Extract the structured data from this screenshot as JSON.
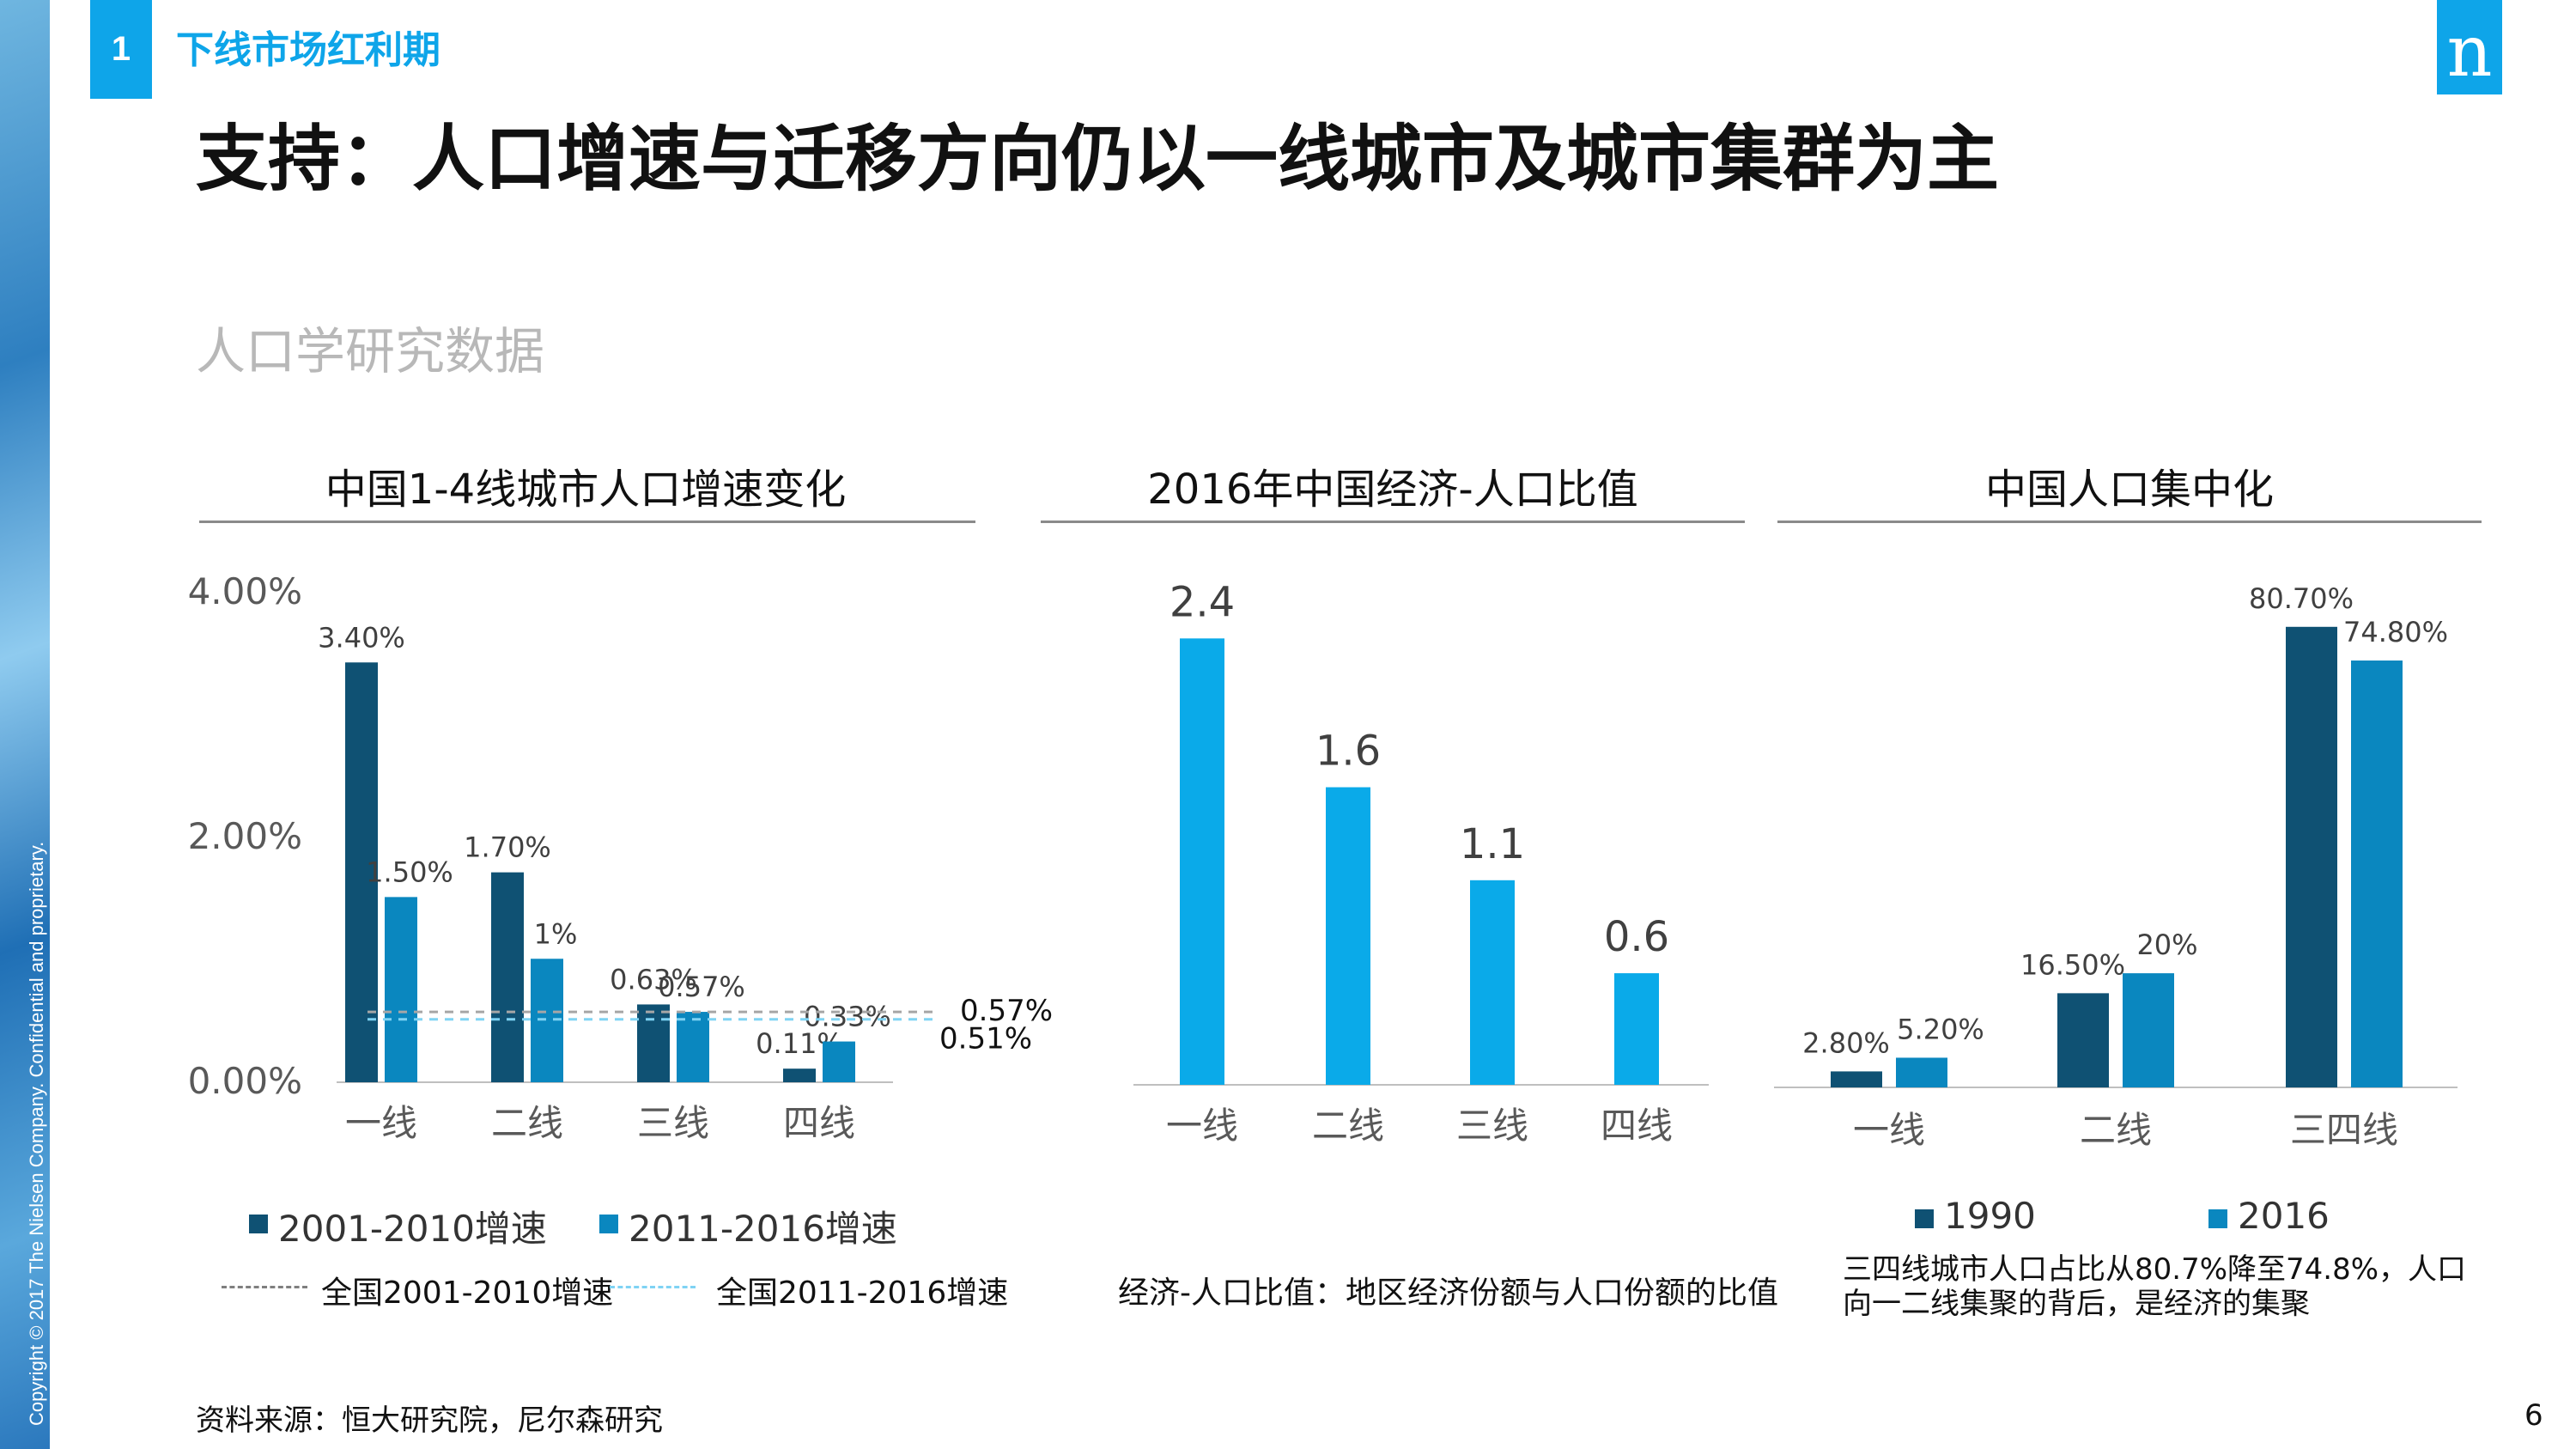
{
  "section": {
    "number": "1",
    "title": "下线市场红利期"
  },
  "logo": {
    "text": "n"
  },
  "title": "支持：人口增速与迁移方向仍以一线城市及城市集群为主",
  "subtitle": "人口学研究数据",
  "copyright": "Copyright © 2017 The Nielsen Company. Confidential and proprietary.",
  "source": "资料来源：恒大研究院，尼尔森研究",
  "page_number": "6",
  "colors": {
    "dark_blue": "#0f5173",
    "mid_blue": "#0a87bf",
    "bright_blue": "#0aaae9",
    "accent": "#0ea5e9"
  },
  "chart_data": [
    {
      "type": "bar",
      "title": "中国1-4线城市人口增速变化",
      "categories": [
        "一线",
        "二线",
        "三线",
        "四线"
      ],
      "series": [
        {
          "name": "2001-2010增速",
          "values": [
            3.4,
            1.7,
            0.63,
            0.11
          ],
          "labels": [
            "3.40%",
            "1.70%",
            "0.63%",
            "0.11%"
          ],
          "color": "#0f5173"
        },
        {
          "name": "2011-2016增速",
          "values": [
            1.5,
            1.0,
            0.57,
            0.33
          ],
          "labels": [
            "1.50%",
            "1%",
            "0.57%",
            "0.33%"
          ],
          "color": "#0a87bf"
        }
      ],
      "reference_lines": [
        {
          "name": "全国2001-2010增速",
          "value": 0.57,
          "label": "0.57%",
          "color": "#a6a6a6"
        },
        {
          "name": "全国2011-2016增速",
          "value": 0.51,
          "label": "0.51%",
          "color": "#7fd3f4"
        }
      ],
      "ylim": [
        0,
        4
      ],
      "yticks": [
        0,
        2,
        4
      ],
      "ytick_labels": [
        "0.00%",
        "2.00%",
        "4.00%"
      ],
      "legend": "bottom"
    },
    {
      "type": "bar",
      "title": "2016年中国经济-人口比值",
      "categories": [
        "一线",
        "二线",
        "三线",
        "四线"
      ],
      "series": [
        {
          "values": [
            2.4,
            1.6,
            1.1,
            0.6
          ],
          "labels": [
            "2.4",
            "1.6",
            "1.1",
            "0.6"
          ],
          "color": "#0aaae9"
        }
      ],
      "ylim": [
        0,
        2.6
      ],
      "note": "经济-人口比值：地区经济份额与人口份额的比值"
    },
    {
      "type": "bar",
      "title": "中国人口集中化",
      "categories": [
        "一线",
        "二线",
        "三四线"
      ],
      "series": [
        {
          "name": "1990",
          "values": [
            2.8,
            16.5,
            80.7
          ],
          "labels": [
            "2.80%",
            "16.50%",
            "80.70%"
          ],
          "color": "#0f5173"
        },
        {
          "name": "2016",
          "values": [
            5.2,
            20,
            74.8
          ],
          "labels": [
            "5.20%",
            "20%",
            "74.80%"
          ],
          "color": "#0a87bf"
        }
      ],
      "ylim": [
        0,
        90
      ],
      "legend": "bottom",
      "note": "三四线城市人口占比从80.7%降至74.8%，人口向一二线集聚的背后，是经济的集聚"
    }
  ]
}
